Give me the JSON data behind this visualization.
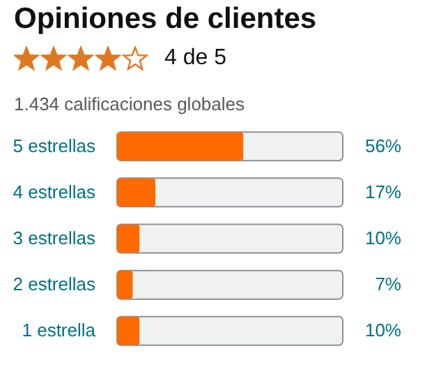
{
  "chart_data": {
    "type": "bar",
    "title": "Opiniones de clientes",
    "subtitle": "4 de 5",
    "annotations": [
      "1.434 calificaciones globales"
    ],
    "orientation": "horizontal",
    "categories": [
      "5 estrellas",
      "4 estrellas",
      "3 estrellas",
      "2 estrellas",
      "1 estrella"
    ],
    "values": [
      56,
      17,
      10,
      7,
      10
    ],
    "color": "#ff6a00",
    "value_labels": [
      "56%",
      "17%",
      "10%",
      "7%",
      "10%"
    ],
    "xlim": [
      0,
      100
    ],
    "tick_labels": "y"
  }
}
